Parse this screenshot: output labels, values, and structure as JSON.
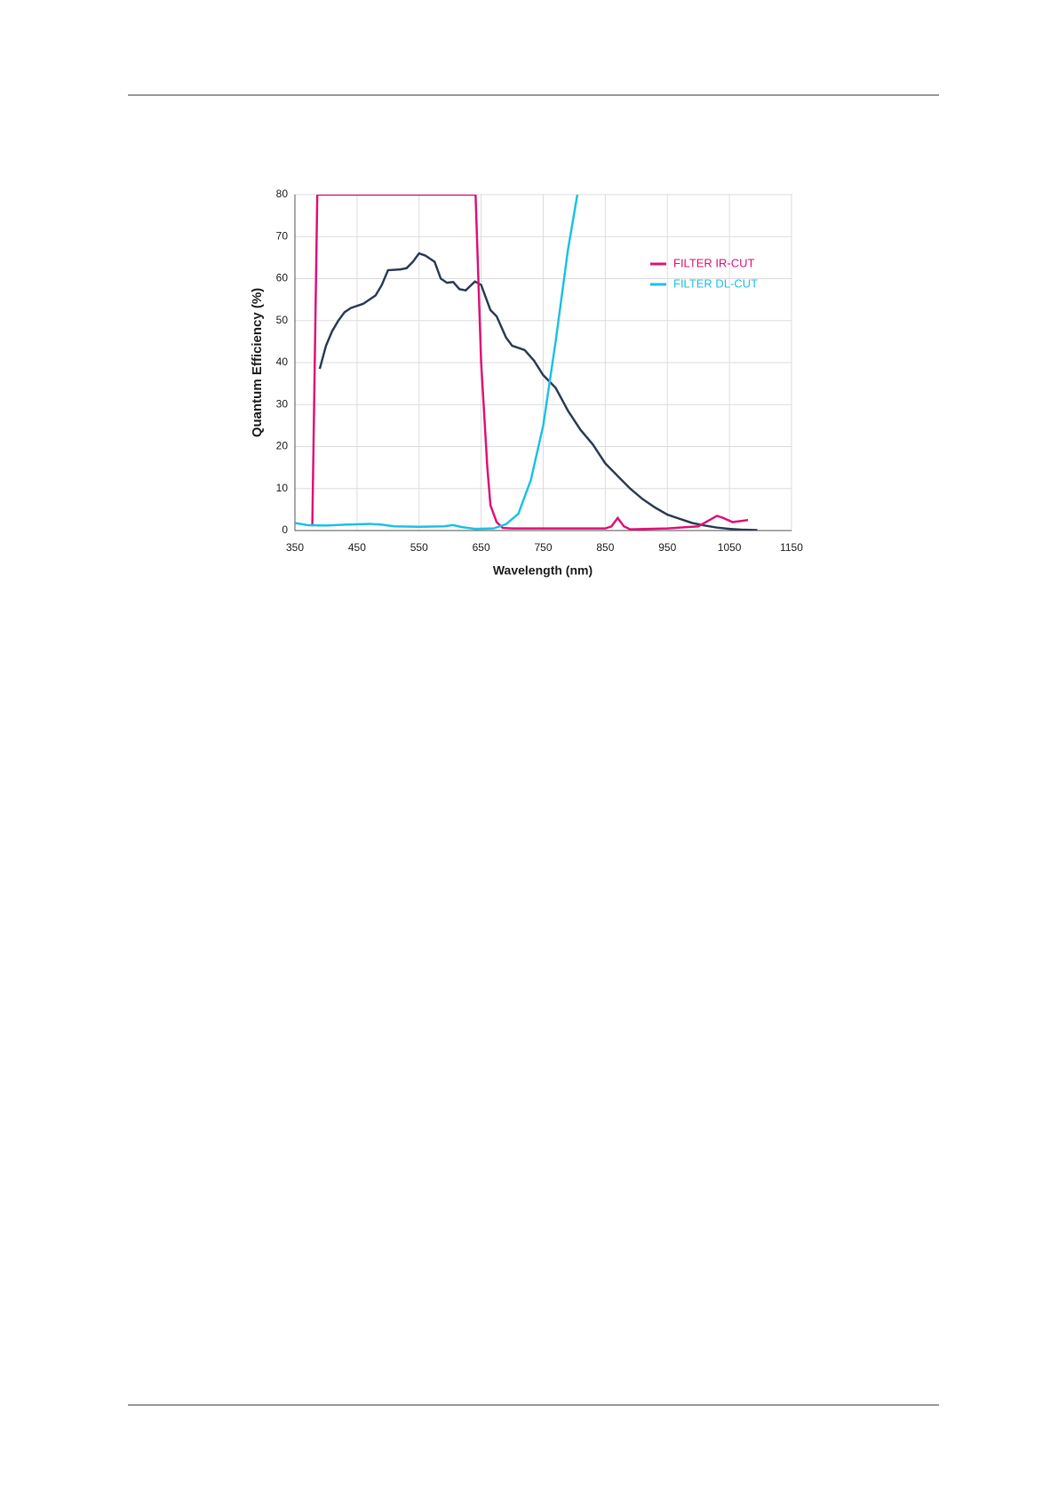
{
  "chart_data": {
    "type": "line",
    "x_label": "Wavelength (nm)",
    "y_label": "Quantum Efficiency (%)",
    "xlim": [
      350,
      1150
    ],
    "xticks": [
      350,
      450,
      550,
      650,
      750,
      850,
      950,
      1050,
      1150
    ],
    "ylim": [
      0,
      80
    ],
    "yticks": [
      0,
      10,
      20,
      30,
      40,
      50,
      60,
      70,
      80
    ],
    "grid": true,
    "legend": "upper right",
    "series": [
      {
        "color": "#2e3e55",
        "x": [
          390,
          400,
          410,
          420,
          430,
          440,
          460,
          480,
          490,
          500,
          520,
          530,
          540,
          550,
          560,
          575,
          585,
          595,
          605,
          615,
          625,
          640,
          650,
          665,
          675,
          690,
          700,
          710,
          720,
          735,
          750,
          770,
          790,
          810,
          830,
          850,
          870,
          890,
          910,
          930,
          950,
          970,
          990,
          1010,
          1030,
          1050,
          1070,
          1095
        ],
        "values": [
          38.5,
          44,
          47.5,
          50,
          52,
          53,
          54,
          56,
          58.5,
          62,
          62.2,
          62.5,
          64,
          66,
          65.5,
          64,
          60,
          59,
          59.2,
          57.5,
          57.2,
          59.3,
          58.5,
          52.5,
          51,
          46,
          44,
          43.5,
          43,
          40.5,
          37,
          34,
          28.5,
          24,
          20.5,
          16,
          13,
          10,
          7.5,
          5.5,
          3.8,
          2.8,
          1.8,
          1.2,
          0.7,
          0.4,
          0.2,
          0.1
        ]
      },
      {
        "name": "FILTER IR-CUT",
        "color": "#e0147a",
        "x": [
          378,
          386,
          641,
          650,
          660,
          665,
          675,
          685,
          700,
          850,
          860,
          870,
          880,
          890,
          950,
          1000,
          1030,
          1040,
          1055,
          1080
        ],
        "values": [
          1,
          80,
          80,
          40,
          15,
          6,
          2,
          0.6,
          0.5,
          0.5,
          1,
          3,
          1,
          0.3,
          0.5,
          1,
          3.5,
          3,
          2,
          2.5
        ]
      },
      {
        "name": "FILTER DL-CUT",
        "color": "#1fc2e6",
        "x": [
          350,
          370,
          400,
          430,
          470,
          490,
          510,
          550,
          590,
          605,
          620,
          640,
          670,
          690,
          710,
          730,
          750,
          770,
          790,
          805
        ],
        "values": [
          1.8,
          1.3,
          1.2,
          1.4,
          1.6,
          1.4,
          1.0,
          0.9,
          1.0,
          1.3,
          0.8,
          0.4,
          0.5,
          1.5,
          4,
          12,
          25,
          45,
          67,
          80
        ]
      }
    ]
  }
}
